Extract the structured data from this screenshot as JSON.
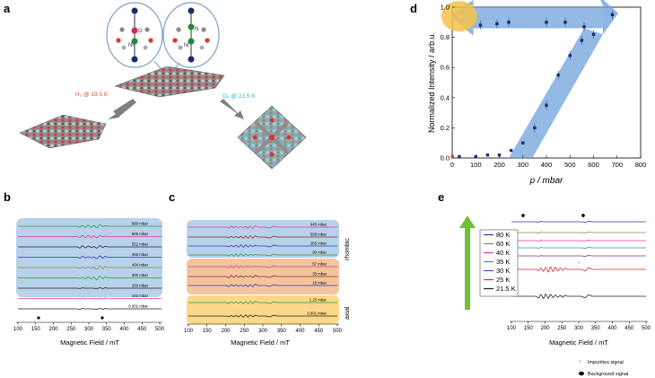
{
  "panel_labels": {
    "a": "a",
    "b": "b",
    "c": "c",
    "d": "d",
    "e": "e"
  },
  "panel_a": {
    "h2_label": "H₂ @ 19.5 K",
    "o2_label": "O₂ @ 21.5 K",
    "inset_left_atom_top": "O",
    "inset_left_atom_mid": "Ni",
    "inset_right_atom_top": "N",
    "inset_right_atom_mid": "Ni",
    "h2_color": "#d2531f",
    "o2_color": "#1fb6c8"
  },
  "panel_b": {
    "traces": [
      {
        "label": "680 mbar",
        "color": "#2a9d3a"
      },
      {
        "label": "606 mbar",
        "color": "#e0399b"
      },
      {
        "label": "552 mbar",
        "color": "#222222"
      },
      {
        "label": "458 mbar",
        "color": "#2d3aa8"
      },
      {
        "label": "404 mbar",
        "color": "#8a8a3a"
      },
      {
        "label": "300 mbar",
        "color": "#2a9d3a"
      },
      {
        "label": "250 mbar",
        "color": "#222222"
      },
      {
        "label": "102 mbar",
        "color": "#e0399b"
      },
      {
        "label": "0.001 mbar",
        "color": "#222222"
      }
    ],
    "xlabel": "Magnetic Field / mT",
    "ticks": [
      "100",
      "150",
      "200",
      "250",
      "300",
      "350",
      "400",
      "450",
      "500"
    ],
    "box_color": "#b7d2ea"
  },
  "panel_c": {
    "traces": [
      {
        "label": "645 mbar",
        "color": "#e0399b"
      },
      {
        "label": "558 mbar",
        "color": "#8a2a2a"
      },
      {
        "label": "265 mbar",
        "color": "#2d3aa8"
      },
      {
        "label": "90 mbar",
        "color": "#2a9d3a"
      },
      {
        "label": "57 mbar",
        "color": "#e0399b"
      },
      {
        "label": "35 mbar",
        "color": "#8a2a2a"
      },
      {
        "label": "15 mbar",
        "color": "#2d3aa8"
      },
      {
        "label": "1.25 mbar",
        "color": "#2a9d3a"
      },
      {
        "label": "0.001 mbar",
        "color": "#222222"
      }
    ],
    "xlabel": "Magnetic Field / mT",
    "ticks": [
      "100",
      "150",
      "200",
      "250",
      "300",
      "350",
      "400",
      "450",
      "500"
    ],
    "rhombic_label": "rhombic",
    "axial_label": "axial",
    "box_colors": {
      "rhombic": "#b7d2ea",
      "mid": "#f4c49e",
      "axial": "#fbd98a"
    }
  },
  "chart_data": [
    {
      "type": "scatter",
      "title": "",
      "xlabel": "p / mbar",
      "ylabel": "Normalized Intensity / arb.u.",
      "xlim": [
        0,
        800
      ],
      "ylim": [
        0,
        1.0
      ],
      "xticks": [
        "0",
        "100",
        "200",
        "300",
        "400",
        "500",
        "600",
        "700",
        "800"
      ],
      "yticks": [
        "0.0",
        "0.2",
        "0.4",
        "0.6",
        "0.8",
        "1.0"
      ],
      "x": [
        1,
        30,
        100,
        150,
        200,
        250,
        300,
        350,
        400,
        450,
        500,
        550,
        600,
        680,
        560,
        480,
        400,
        240,
        190,
        120
      ],
      "y": [
        0.01,
        0.01,
        0.01,
        0.02,
        0.02,
        0.05,
        0.1,
        0.2,
        0.35,
        0.55,
        0.68,
        0.78,
        0.82,
        0.95,
        0.87,
        0.9,
        0.9,
        0.9,
        0.89,
        0.88
      ],
      "point_color": "#1f2a7a",
      "arrow_color": "#6fa2dc",
      "circle_color": "#f5c24a",
      "first_point_marker_color": "#e03b3b"
    }
  ],
  "panel_e": {
    "legend": [
      {
        "label": "80 K",
        "color": "#2d3aa8"
      },
      {
        "label": "60 K",
        "color": "#8a8a3a"
      },
      {
        "label": "40 K",
        "color": "#e0399b"
      },
      {
        "label": "35 K",
        "color": "#2a9d9a"
      },
      {
        "label": "30 K",
        "color": "#6b3aa8"
      },
      {
        "label": "25 K",
        "color": "#d22a3a"
      },
      {
        "label": "21.5 K",
        "color": "#222222"
      }
    ],
    "xlabel": "Magnetic Field / mT",
    "ticks": [
      "100",
      "150",
      "200",
      "250",
      "300",
      "350",
      "400",
      "450",
      "500"
    ],
    "impurities_label": "Impurities signal",
    "background_label": "Background signal",
    "impurities_color": "#e8835a",
    "arrow_color": "#6fbf3a"
  }
}
